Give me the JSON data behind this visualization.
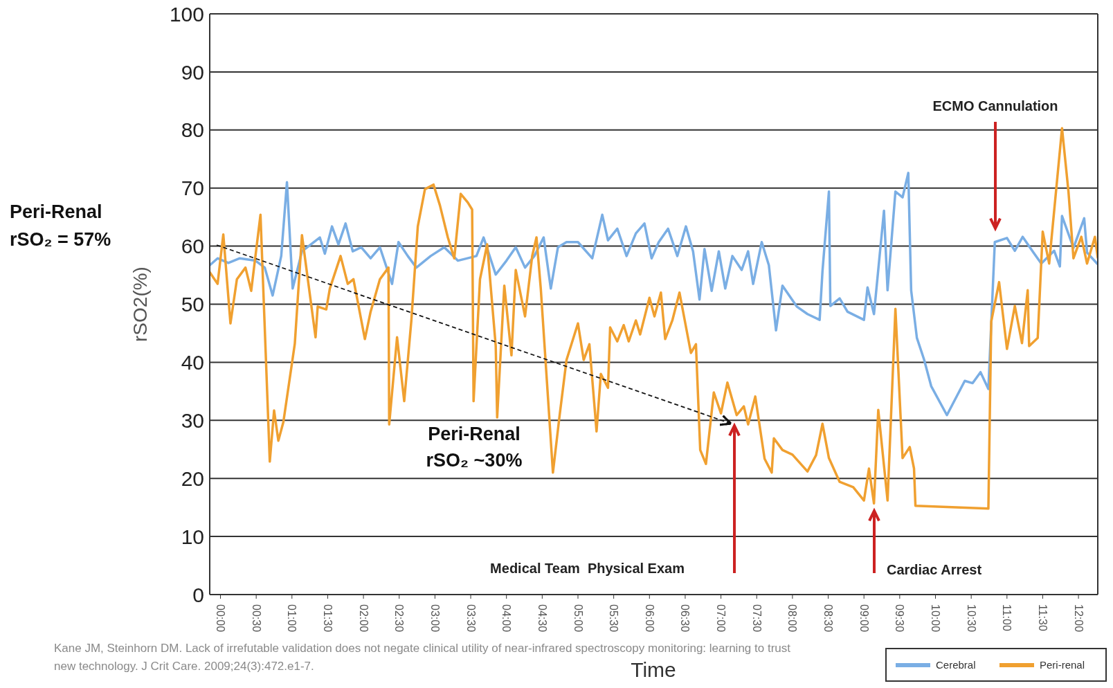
{
  "chart_data": {
    "type": "line",
    "xlabel": "Time",
    "ylabel": "rSO2(%)",
    "xlim": [
      -0.15,
      12.27
    ],
    "ylim": [
      0,
      100
    ],
    "xticks": [
      {
        "value": 0,
        "label": "00:00"
      },
      {
        "value": 0.5,
        "label": "00:30"
      },
      {
        "value": 1,
        "label": "01:00"
      },
      {
        "value": 1.5,
        "label": "01:30"
      },
      {
        "value": 2,
        "label": "02:00"
      },
      {
        "value": 2.5,
        "label": "02:30"
      },
      {
        "value": 3,
        "label": "03:00"
      },
      {
        "value": 3.5,
        "label": "03:30"
      },
      {
        "value": 4,
        "label": "04:00"
      },
      {
        "value": 4.5,
        "label": "04:30"
      },
      {
        "value": 5,
        "label": "05:00"
      },
      {
        "value": 5.5,
        "label": "05:30"
      },
      {
        "value": 6,
        "label": "06:00"
      },
      {
        "value": 6.5,
        "label": "06:30"
      },
      {
        "value": 7,
        "label": "07:00"
      },
      {
        "value": 7.5,
        "label": "07:30"
      },
      {
        "value": 8,
        "label": "08:00"
      },
      {
        "value": 8.5,
        "label": "08:30"
      },
      {
        "value": 9,
        "label": "09:00"
      },
      {
        "value": 9.5,
        "label": "09:30"
      },
      {
        "value": 10,
        "label": "10:00"
      },
      {
        "value": 10.5,
        "label": "10:30"
      },
      {
        "value": 11,
        "label": "11:00"
      },
      {
        "value": 11.5,
        "label": "11:30"
      },
      {
        "value": 12,
        "label": "12:00"
      }
    ],
    "yticks": [
      0,
      10,
      20,
      30,
      40,
      50,
      60,
      70,
      80,
      90,
      100
    ],
    "grid": "y",
    "legend": "bottom right",
    "series": [
      {
        "name": "Cerebral",
        "color": "#7aaee4",
        "x": [
          -0.15,
          -0.04,
          0.11,
          0.27,
          0.49,
          0.62,
          0.73,
          0.85,
          0.93,
          1.01,
          1.14,
          1.39,
          1.46,
          1.56,
          1.65,
          1.75,
          1.85,
          1.97,
          2.1,
          2.23,
          2.4,
          2.49,
          2.62,
          2.74,
          2.94,
          3.13,
          3.32,
          3.58,
          3.68,
          3.85,
          4.0,
          4.13,
          4.26,
          4.39,
          4.52,
          4.62,
          4.72,
          4.84,
          5.0,
          5.2,
          5.34,
          5.42,
          5.55,
          5.68,
          5.81,
          5.93,
          6.03,
          6.13,
          6.26,
          6.39,
          6.51,
          6.61,
          6.7,
          6.77,
          6.87,
          6.97,
          7.06,
          7.16,
          7.29,
          7.38,
          7.45,
          7.57,
          7.67,
          7.77,
          7.86,
          8.06,
          8.21,
          8.38,
          8.42,
          8.51,
          8.53,
          8.66,
          8.77,
          9.0,
          9.05,
          9.14,
          9.28,
          9.33,
          9.44,
          9.54,
          9.62,
          9.66,
          9.74,
          9.84,
          9.94,
          10.16,
          10.41,
          10.52,
          10.63,
          10.74,
          10.83,
          11.0,
          11.11,
          11.22,
          11.37,
          11.48,
          11.66,
          11.74,
          11.77,
          11.93,
          12.08,
          12.12,
          12.26
        ],
        "values": [
          56.7,
          57.9,
          57.1,
          57.9,
          57.5,
          56.3,
          51.5,
          58.3,
          71,
          52.7,
          59.1,
          61.5,
          58.7,
          63.4,
          60.3,
          63.9,
          59.1,
          59.8,
          57.9,
          59.8,
          53.5,
          60.7,
          58.3,
          56.3,
          58.3,
          59.8,
          57.5,
          58.3,
          61.5,
          55.1,
          57.5,
          59.8,
          56.3,
          58.3,
          61.5,
          52.7,
          59.8,
          60.7,
          60.7,
          57.9,
          65.4,
          61,
          63,
          58.3,
          62.2,
          63.9,
          57.9,
          60.7,
          63,
          58.3,
          63.4,
          59.1,
          50.8,
          59.5,
          52.3,
          59.1,
          52.7,
          58.3,
          55.9,
          59.1,
          53.5,
          60.7,
          56.7,
          45.5,
          53.2,
          49.6,
          48.3,
          47.3,
          55.7,
          69.4,
          49.7,
          51,
          48.7,
          47.3,
          52.9,
          48.3,
          66.1,
          52.4,
          69.4,
          68.4,
          72.6,
          52.4,
          44.2,
          40.5,
          35.9,
          30.9,
          36.8,
          36.4,
          38.3,
          35.4,
          60.7,
          61.4,
          59.2,
          61.6,
          58.9,
          57,
          59.2,
          56.5,
          65.2,
          59.7,
          64.8,
          58.9,
          57
        ]
      },
      {
        "name": "Peri-renal",
        "color": "#f0a030",
        "x": [
          -0.15,
          -0.04,
          0.04,
          0.14,
          0.23,
          0.35,
          0.43,
          0.56,
          0.69,
          0.75,
          0.81,
          0.88,
          1.04,
          1.14,
          1.33,
          1.36,
          1.48,
          1.53,
          1.68,
          1.78,
          1.86,
          2.02,
          2.1,
          2.23,
          2.35,
          2.36,
          2.47,
          2.57,
          2.67,
          2.76,
          2.86,
          2.98,
          3.07,
          3.18,
          3.27,
          3.36,
          3.46,
          3.52,
          3.54,
          3.63,
          3.73,
          3.85,
          3.87,
          3.97,
          4.07,
          4.13,
          4.26,
          4.36,
          4.42,
          4.48,
          4.65,
          4.74,
          4.84,
          5.0,
          5.08,
          5.16,
          5.26,
          5.32,
          5.42,
          5.45,
          5.55,
          5.64,
          5.71,
          5.81,
          5.87,
          6.0,
          6.07,
          6.16,
          6.22,
          6.32,
          6.42,
          6.58,
          6.65,
          6.71,
          6.79,
          6.9,
          7.0,
          7.09,
          7.22,
          7.32,
          7.38,
          7.48,
          7.61,
          7.71,
          7.74,
          7.86,
          8.0,
          8.21,
          8.33,
          8.42,
          8.51,
          8.66,
          8.85,
          9.0,
          9.07,
          9.14,
          9.2,
          9.33,
          9.44,
          9.54,
          9.64,
          9.7,
          9.72,
          10.74,
          10.78,
          10.89,
          11.0,
          11.11,
          11.21,
          11.29,
          11.31,
          11.43,
          11.5,
          11.59,
          11.77,
          11.86,
          11.93,
          12.04,
          12.12,
          12.23,
          12.27
        ],
        "values": [
          55.5,
          53.5,
          62,
          46.7,
          54.3,
          56.3,
          52.3,
          65.4,
          22.9,
          31.7,
          26.5,
          29.7,
          43.2,
          61.9,
          44.3,
          49.6,
          49.1,
          52.7,
          58.3,
          53.5,
          54.3,
          44,
          48.7,
          54.3,
          56.3,
          29.3,
          44.3,
          33.3,
          47.2,
          63.4,
          69.8,
          70.6,
          67,
          61.5,
          57.9,
          69,
          67.5,
          66.3,
          33.3,
          54.3,
          60.3,
          42.8,
          30.5,
          53.2,
          41.2,
          55.9,
          47.9,
          58.3,
          61.5,
          52.7,
          21,
          30.5,
          40.4,
          46.7,
          40.4,
          43.1,
          28.1,
          38,
          35.6,
          46,
          43.6,
          46.4,
          43.6,
          47.2,
          44.8,
          51.1,
          47.9,
          52,
          44,
          47.2,
          52,
          41.6,
          43.1,
          24.9,
          22.5,
          34.8,
          31.2,
          36.5,
          30.9,
          32.4,
          29.3,
          34.1,
          23.4,
          21,
          26.9,
          24.9,
          24.1,
          21.2,
          24,
          29.4,
          23.5,
          19.4,
          18.5,
          16.2,
          21.7,
          15.7,
          31.8,
          16.2,
          49.2,
          23.5,
          25.4,
          21.7,
          15.3,
          14.8,
          47,
          53.8,
          42.3,
          49.7,
          43.3,
          52.4,
          42.8,
          44.2,
          62.5,
          57,
          80.3,
          69.4,
          57.9,
          61.6,
          57,
          61.6,
          58
        ]
      }
    ],
    "annotations": [
      "Peri-Renal\nrSO₂ = 57%",
      "Peri-Renal\nrSO₂ ~30%",
      "ECMO Cannulation",
      "Medical Team  Physical Exam",
      "Cardiac Arrest",
      "Kane JM, Steinhorn DM. Lack of irrefutable validation does not negate clinical utility of near-infrared spectroscopy monitoring: learning to trust\nnew technology. J Crit Care. 2009;24(3):472.e1-7."
    ]
  }
}
